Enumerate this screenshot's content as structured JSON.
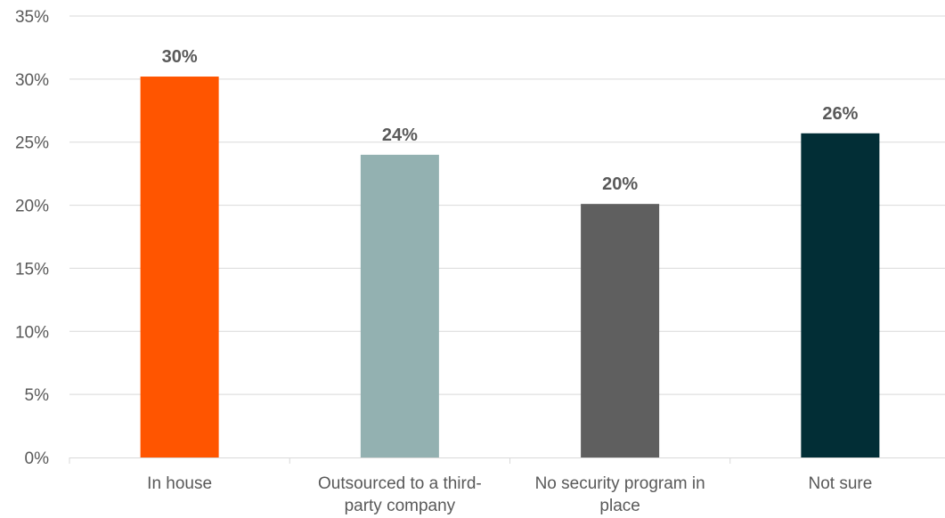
{
  "chart_data": {
    "type": "bar",
    "categories": [
      [
        "In house"
      ],
      [
        "Outsourced to a third-",
        "party company"
      ],
      [
        "No security program in",
        "place"
      ],
      [
        "Not sure"
      ]
    ],
    "values": [
      30.2,
      24.0,
      20.1,
      25.7
    ],
    "data_labels": [
      "30%",
      "24%",
      "20%",
      "26%"
    ],
    "colors": [
      "#ff5500",
      "#93b1b1",
      "#5f5f5f",
      "#022e36"
    ],
    "ylim": [
      0,
      35
    ],
    "y_ticks": [
      0,
      5,
      10,
      15,
      20,
      25,
      30,
      35
    ],
    "y_tick_labels": [
      "0%",
      "5%",
      "10%",
      "15%",
      "20%",
      "25%",
      "30%",
      "35%"
    ],
    "grid": true,
    "title": "",
    "xlabel": "",
    "ylabel": ""
  }
}
